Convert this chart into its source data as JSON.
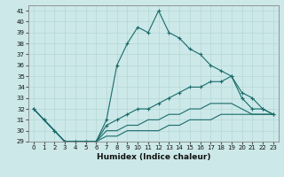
{
  "title": "",
  "xlabel": "Humidex (Indice chaleur)",
  "bg_color": "#cce8e8",
  "line_color": "#1a6b6b",
  "ylim": [
    29,
    41.5
  ],
  "xlim": [
    -0.5,
    23.5
  ],
  "yticks": [
    29,
    30,
    31,
    32,
    33,
    34,
    35,
    36,
    37,
    38,
    39,
    40,
    41
  ],
  "xticks": [
    0,
    1,
    2,
    3,
    4,
    5,
    6,
    7,
    8,
    9,
    10,
    11,
    12,
    13,
    14,
    15,
    16,
    17,
    18,
    19,
    20,
    21,
    22,
    23
  ],
  "series": [
    {
      "x": [
        0,
        1,
        2,
        3,
        4,
        5,
        6,
        7,
        8,
        9,
        10,
        11,
        12,
        13,
        14,
        15,
        16,
        17,
        18,
        19,
        20,
        21,
        22,
        23
      ],
      "y": [
        32,
        31,
        30,
        29,
        29,
        29,
        29,
        31,
        36,
        38,
        39.5,
        39,
        41,
        39,
        38.5,
        37.5,
        37,
        36,
        35.5,
        35,
        33,
        32,
        32,
        31.5
      ],
      "marker": "+"
    },
    {
      "x": [
        0,
        1,
        2,
        3,
        4,
        5,
        6,
        7,
        8,
        9,
        10,
        11,
        12,
        13,
        14,
        15,
        16,
        17,
        18,
        19,
        20,
        21,
        22,
        23
      ],
      "y": [
        32,
        31,
        30,
        29,
        29,
        29,
        29,
        30.5,
        31,
        31.5,
        32,
        32,
        32.5,
        33,
        33.5,
        34,
        34,
        34.5,
        34.5,
        35,
        33.5,
        33,
        32,
        31.5
      ],
      "marker": "+"
    },
    {
      "x": [
        0,
        1,
        2,
        3,
        4,
        5,
        6,
        7,
        8,
        9,
        10,
        11,
        12,
        13,
        14,
        15,
        16,
        17,
        18,
        19,
        20,
        21,
        22,
        23
      ],
      "y": [
        32,
        31,
        30,
        29,
        29,
        29,
        29,
        30,
        30,
        30.5,
        30.5,
        31,
        31,
        31.5,
        31.5,
        32,
        32,
        32.5,
        32.5,
        32.5,
        32,
        31.5,
        31.5,
        31.5
      ],
      "marker": null
    },
    {
      "x": [
        0,
        1,
        2,
        3,
        4,
        5,
        6,
        7,
        8,
        9,
        10,
        11,
        12,
        13,
        14,
        15,
        16,
        17,
        18,
        19,
        20,
        21,
        22,
        23
      ],
      "y": [
        32,
        31,
        30,
        29,
        29,
        29,
        29,
        29.5,
        29.5,
        30,
        30,
        30,
        30,
        30.5,
        30.5,
        31,
        31,
        31,
        31.5,
        31.5,
        31.5,
        31.5,
        31.5,
        31.5
      ],
      "marker": null
    }
  ]
}
